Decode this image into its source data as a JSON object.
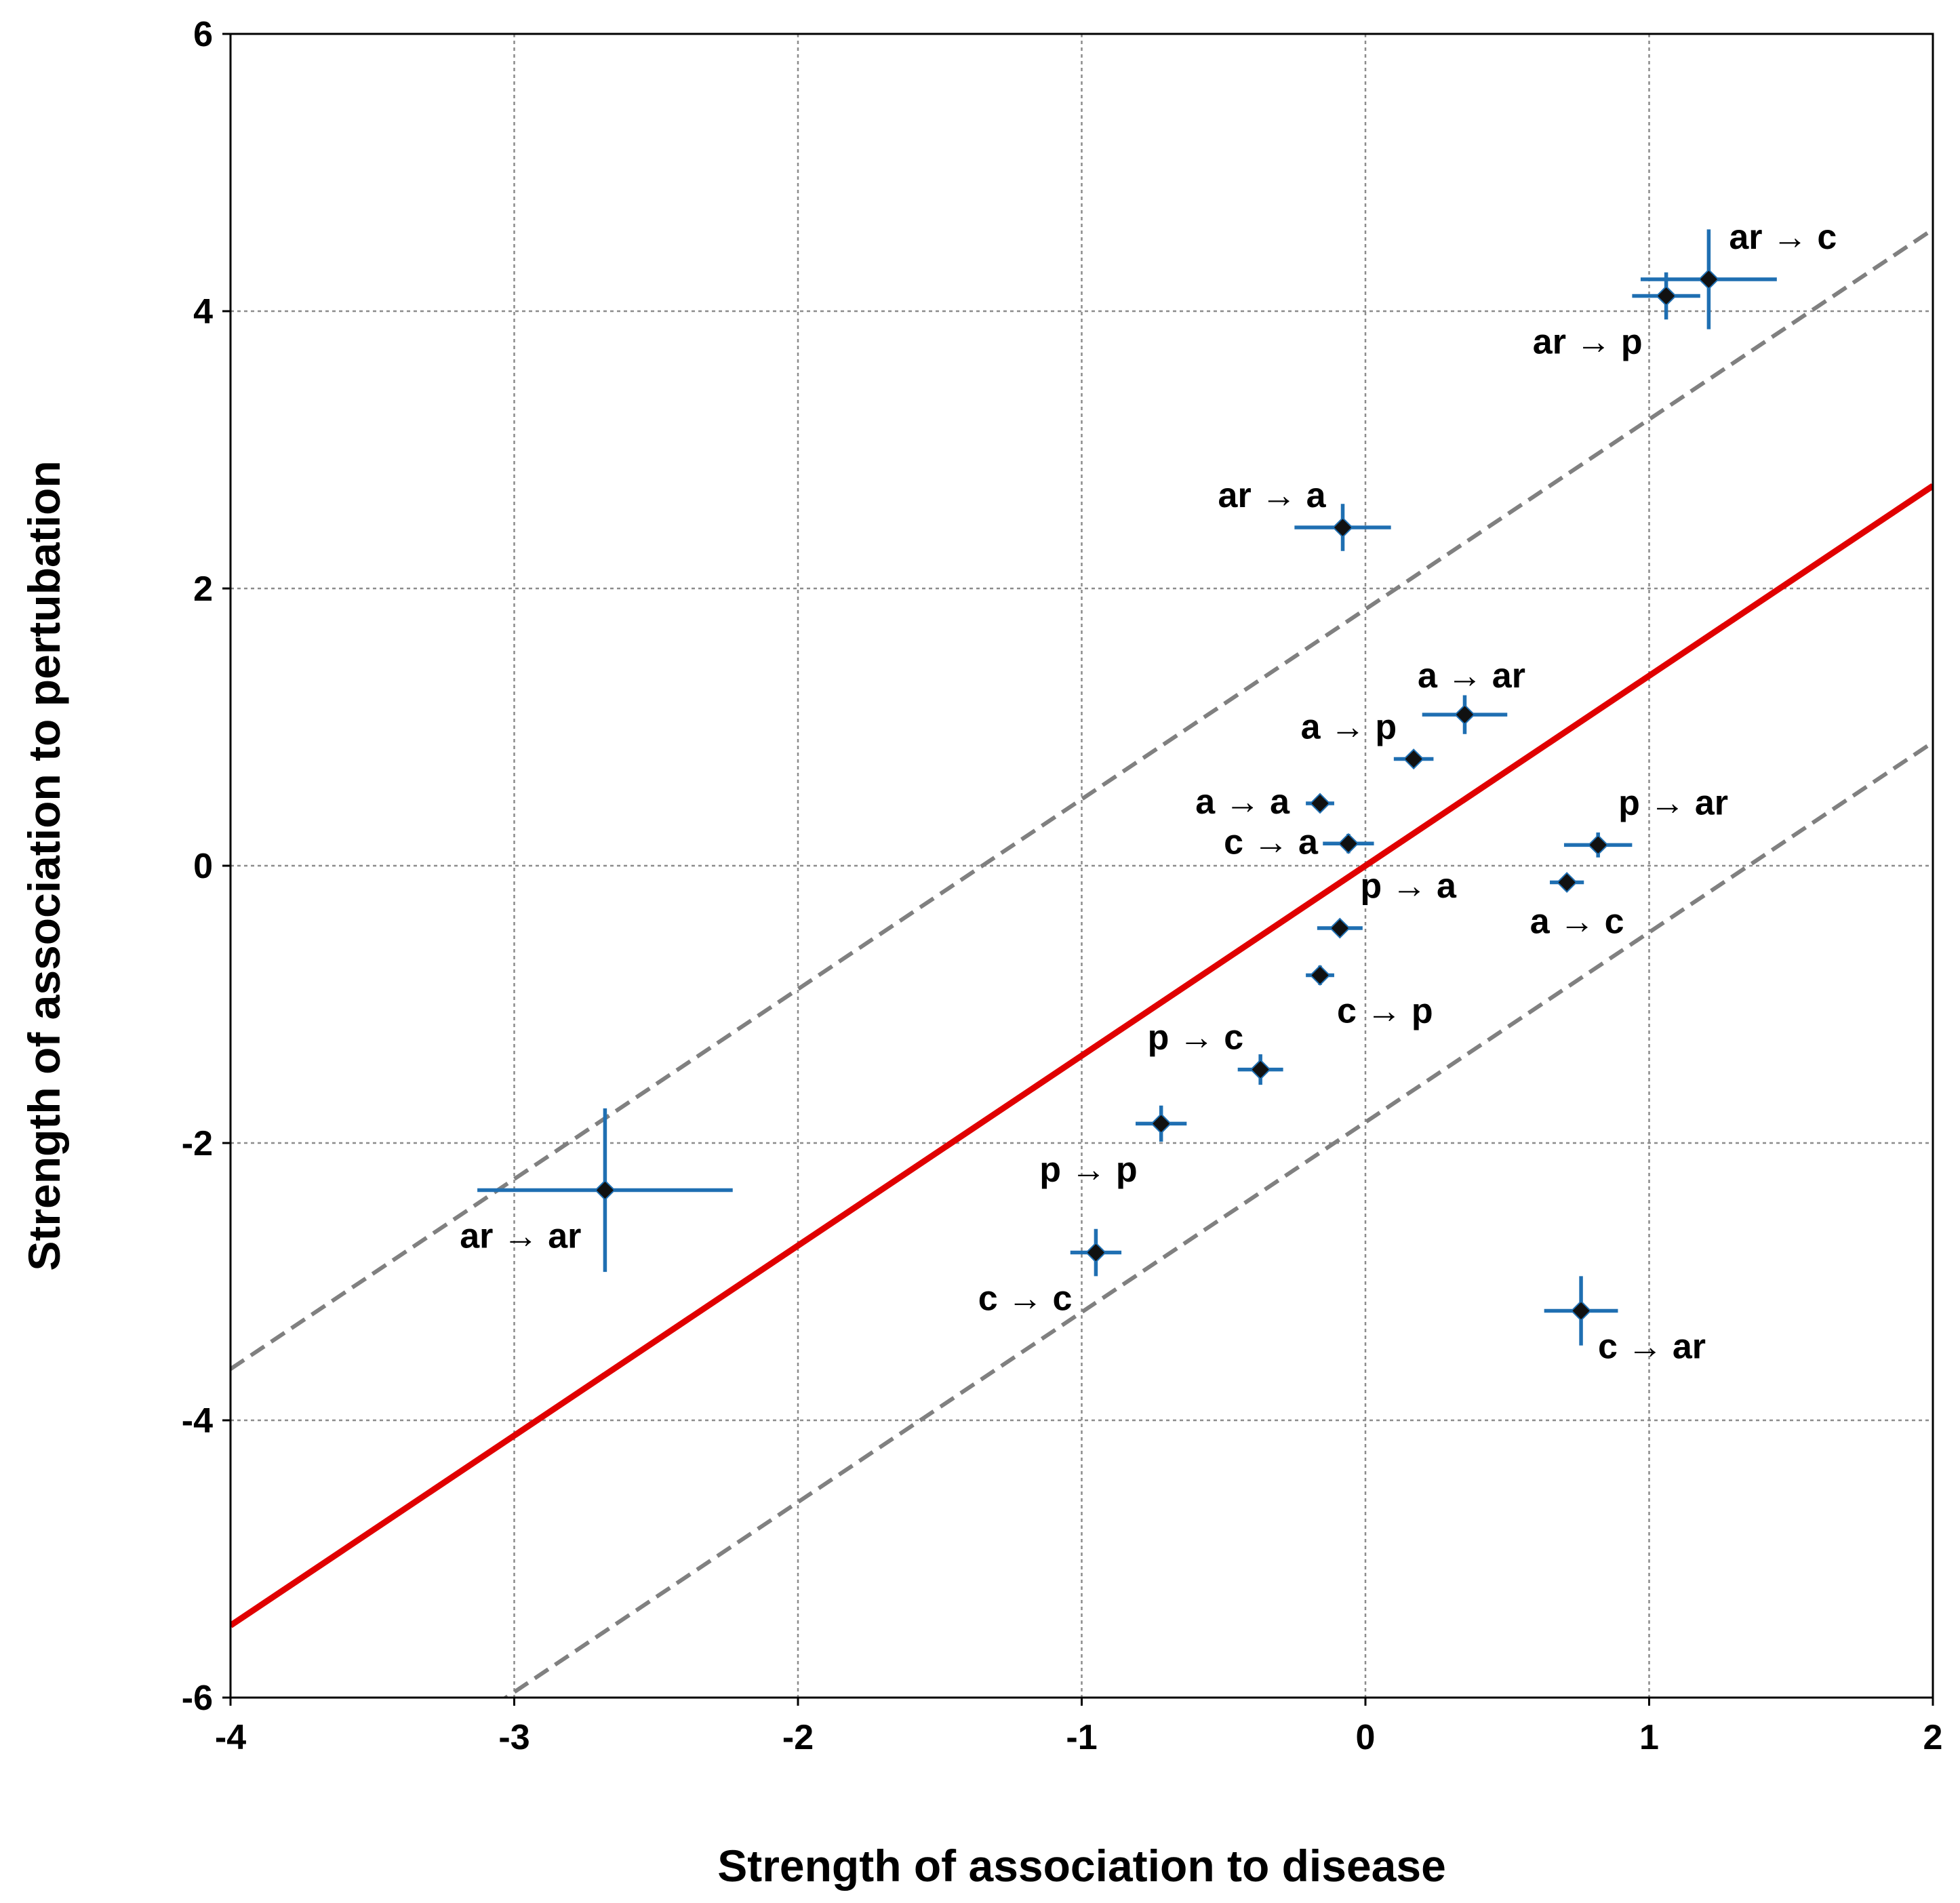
{
  "chart_data": {
    "type": "scatter",
    "xlabel": "Strength of association to disease",
    "ylabel": "Strength of association to pertubation",
    "xlim": [
      -4,
      2
    ],
    "ylim": [
      -6,
      6
    ],
    "x_ticks": [
      -4,
      -3,
      -2,
      -1,
      0,
      1,
      2
    ],
    "y_ticks": [
      -6,
      -4,
      -2,
      0,
      2,
      4,
      6
    ],
    "grid": true,
    "fit_line": {
      "slope": 1.37,
      "intercept": 0.0,
      "color": "#e00000"
    },
    "confidence_band_offset": 1.85,
    "points": [
      {
        "label": "ar → c",
        "x": 1.21,
        "y": 4.23,
        "xerr": 0.24,
        "yerr": 0.36,
        "label_pos": "upper-right"
      },
      {
        "label": "ar → p",
        "x": 1.06,
        "y": 4.11,
        "xerr": 0.12,
        "yerr": 0.17,
        "label_pos": "lower-left"
      },
      {
        "label": "ar → a",
        "x": -0.08,
        "y": 2.44,
        "xerr": 0.17,
        "yerr": 0.17,
        "label_pos": "upper-left"
      },
      {
        "label": "a → ar",
        "x": 0.35,
        "y": 1.09,
        "xerr": 0.15,
        "yerr": 0.14,
        "label_pos": "upper"
      },
      {
        "label": "a → p",
        "x": 0.17,
        "y": 0.77,
        "xerr": 0.07,
        "yerr": 0.05,
        "label_pos": "upper-left"
      },
      {
        "label": "a → a",
        "x": -0.16,
        "y": 0.45,
        "xerr": 0.05,
        "yerr": 0.05,
        "label_pos": "left"
      },
      {
        "label": "c → a",
        "x": -0.06,
        "y": 0.16,
        "xerr": 0.09,
        "yerr": 0.07,
        "label_pos": "left"
      },
      {
        "label": "p → ar",
        "x": 0.82,
        "y": 0.15,
        "xerr": 0.12,
        "yerr": 0.09,
        "label_pos": "upper-right"
      },
      {
        "label": "a → c",
        "x": 0.71,
        "y": -0.12,
        "xerr": 0.06,
        "yerr": 0.05,
        "label_pos": "below"
      },
      {
        "label": "p → a",
        "x": -0.09,
        "y": -0.45,
        "xerr": 0.08,
        "yerr": 0.06,
        "label_pos": "upper-right"
      },
      {
        "label": "c → p",
        "x": -0.16,
        "y": -0.79,
        "xerr": 0.05,
        "yerr": 0.07,
        "label_pos": "lower-right"
      },
      {
        "label": "p → c",
        "x": -0.37,
        "y": -1.47,
        "xerr": 0.08,
        "yerr": 0.11,
        "label_pos": "upper-left"
      },
      {
        "label": "p → p",
        "x": -0.72,
        "y": -1.86,
        "xerr": 0.09,
        "yerr": 0.13,
        "label_pos": "lower-left"
      },
      {
        "label": "ar → ar",
        "x": -2.68,
        "y": -2.34,
        "xerr": 0.45,
        "yerr": 0.59,
        "label_pos": "lower-left"
      },
      {
        "label": "c → c",
        "x": -0.95,
        "y": -2.79,
        "xerr": 0.09,
        "yerr": 0.17,
        "label_pos": "lower-left"
      },
      {
        "label": "c → ar",
        "x": 0.76,
        "y": -3.21,
        "xerr": 0.13,
        "yerr": 0.25,
        "label_pos": "lower-right"
      }
    ]
  }
}
